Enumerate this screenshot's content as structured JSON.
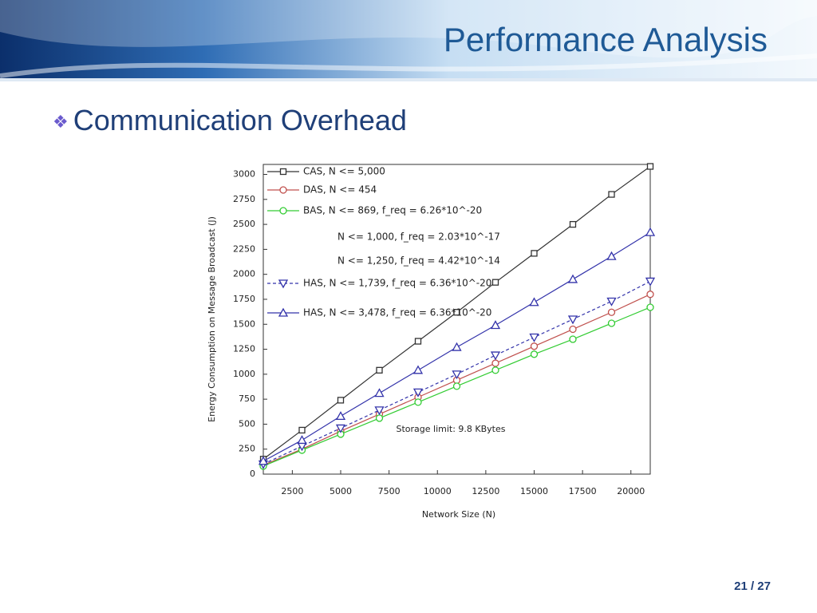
{
  "slide": {
    "title": "Performance Analysis",
    "bullet": "Communication Overhead",
    "page": "21 / 27"
  },
  "chart_data": {
    "type": "line",
    "x_label": "Network Size (N)",
    "y_label": "Energy Consumption on Message Broadcast (J)",
    "annotation": "Storage limit: 9.8 KBytes",
    "legend_notes": [
      "N <= 1,000, f_req = 2.03*10^-17",
      "N <= 1,250, f_req = 4.42*10^-14"
    ],
    "x": [
      1000,
      3000,
      5000,
      7000,
      9000,
      11000,
      13000,
      15000,
      17000,
      19000,
      21000
    ],
    "series": [
      {
        "name": "CAS, N <= 5,000",
        "color": "#333333",
        "marker": "square",
        "values": [
          150,
          440,
          740,
          1040,
          1330,
          1620,
          1920,
          2210,
          2500,
          2800,
          3080
        ]
      },
      {
        "name": "DAS, N <= 454",
        "color": "#c0504d",
        "marker": "circle",
        "values": [
          90,
          250,
          430,
          600,
          770,
          940,
          1110,
          1280,
          1450,
          1620,
          1800
        ]
      },
      {
        "name": "BAS, N <= 869, f_req = 6.26*10^-20",
        "color": "#33cc33",
        "marker": "circle",
        "values": [
          80,
          240,
          400,
          560,
          720,
          880,
          1040,
          1200,
          1350,
          1510,
          1670
        ]
      },
      {
        "name": "HAS, N <= 1,739, f_req = 6.36*10^-20",
        "color": "#3333aa",
        "marker": "triangle-down",
        "dashed": true,
        "values": [
          100,
          280,
          460,
          640,
          820,
          1000,
          1190,
          1370,
          1550,
          1730,
          1930
        ]
      },
      {
        "name": "HAS, N <= 3,478, f_req = 6.36*10^-20",
        "color": "#3333aa",
        "marker": "triangle-up",
        "values": [
          130,
          340,
          580,
          810,
          1040,
          1270,
          1490,
          1720,
          1950,
          2180,
          2420
        ]
      }
    ],
    "xlim": [
      1000,
      21000
    ],
    "ylim": [
      0,
      3100
    ],
    "xticks": [
      2500,
      5000,
      7500,
      10000,
      12500,
      15000,
      17500,
      20000
    ],
    "yticks": [
      0,
      250,
      500,
      750,
      1000,
      1250,
      1500,
      1750,
      2000,
      2250,
      2500,
      2750,
      3000
    ]
  }
}
